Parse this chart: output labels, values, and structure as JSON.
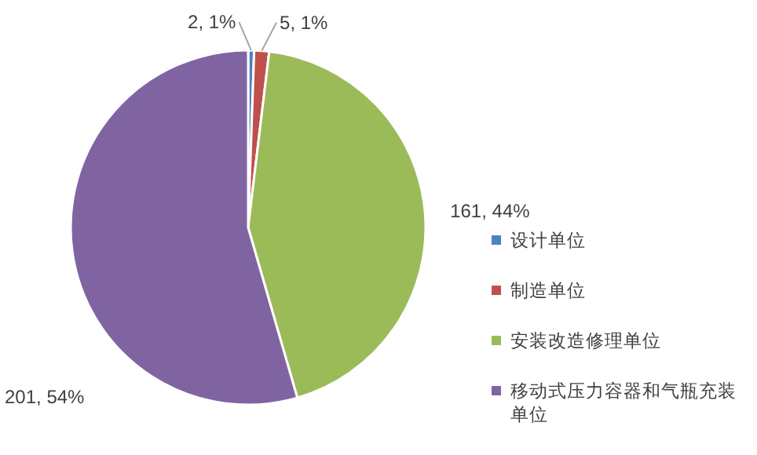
{
  "chart_data": {
    "type": "pie",
    "categories": [
      "设计单位",
      "制造单位",
      "安装改造修理单位",
      "移动式压力容器和气瓶充装单位"
    ],
    "values": [
      2,
      5,
      161,
      201
    ],
    "colors": [
      "#4f81bd",
      "#c0504d",
      "#9bbb59",
      "#8064a2"
    ],
    "value_labels": [
      "2, 1%",
      "5, 1%",
      "161, 44%",
      "201, 54%"
    ],
    "legend": "right"
  }
}
